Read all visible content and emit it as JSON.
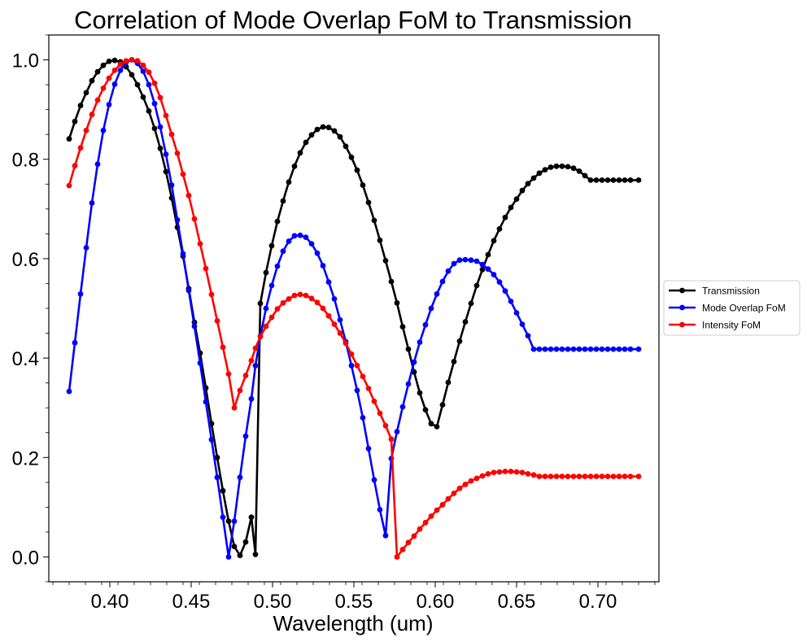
{
  "chart_data": {
    "type": "line",
    "title": "Correlation of Mode Overlap FoM to Transmission",
    "xlabel": "Wavelength (um)",
    "ylabel": "",
    "xlim": [
      0.3625,
      0.7375
    ],
    "ylim": [
      -0.05,
      1.05
    ],
    "xticks": [
      0.4,
      0.45,
      0.5,
      0.55,
      0.6,
      0.65,
      0.7
    ],
    "xtick_labels": [
      "0.40",
      "0.45",
      "0.50",
      "0.55",
      "0.60",
      "0.65",
      "0.70"
    ],
    "yticks": [
      0.0,
      0.2,
      0.4,
      0.6,
      0.8,
      1.0
    ],
    "ytick_labels": [
      "0.0",
      "0.2",
      "0.4",
      "0.6",
      "0.8",
      "1.0"
    ],
    "grid": false,
    "legend_position": "center-right-outside",
    "markers": true,
    "x": [
      0.375,
      0.3785,
      0.382,
      0.3855,
      0.389,
      0.3925,
      0.396,
      0.3995,
      0.403,
      0.4065,
      0.41,
      0.4135,
      0.417,
      0.4205,
      0.424,
      0.4275,
      0.431,
      0.4345,
      0.438,
      0.4415,
      0.445,
      0.4485,
      0.452,
      0.4555,
      0.459,
      0.4625,
      0.466,
      0.4695,
      0.473,
      0.4765,
      0.48,
      0.4835,
      0.487,
      0.4895,
      0.4925,
      0.496,
      0.4995,
      0.503,
      0.5065,
      0.51,
      0.5135,
      0.517,
      0.5205,
      0.524,
      0.5275,
      0.531,
      0.5345,
      0.538,
      0.5415,
      0.545,
      0.5485,
      0.552,
      0.5555,
      0.559,
      0.5625,
      0.566,
      0.5695,
      0.573,
      0.5765,
      0.58,
      0.5835,
      0.587,
      0.5905,
      0.594,
      0.5975,
      0.601,
      0.6045,
      0.608,
      0.6115,
      0.615,
      0.6185,
      0.622,
      0.6255,
      0.629,
      0.6325,
      0.636,
      0.6395,
      0.643,
      0.6465,
      0.65,
      0.6535,
      0.657,
      0.6605,
      0.664,
      0.6675,
      0.671,
      0.6745,
      0.678,
      0.6815,
      0.685,
      0.6885,
      0.692,
      0.6955,
      0.699,
      0.7025,
      0.706,
      0.7095,
      0.713,
      0.7165,
      0.72,
      0.725
    ],
    "series": [
      {
        "name": "Transmission",
        "color": "#000000",
        "values": [
          0.841,
          0.876,
          0.908,
          0.934,
          0.958,
          0.976,
          0.989,
          0.997,
          0.999,
          0.996,
          0.986,
          0.97,
          0.95,
          0.925,
          0.897,
          0.862,
          0.822,
          0.775,
          0.722,
          0.663,
          0.605,
          0.54,
          0.472,
          0.41,
          0.34,
          0.268,
          0.2,
          0.133,
          0.072,
          0.021,
          0.003,
          0.03,
          0.08,
          0.005,
          0.51,
          0.572,
          0.626,
          0.675,
          0.716,
          0.754,
          0.786,
          0.813,
          0.834,
          0.849,
          0.86,
          0.865,
          0.864,
          0.857,
          0.845,
          0.826,
          0.804,
          0.778,
          0.748,
          0.713,
          0.677,
          0.637,
          0.596,
          0.554,
          0.511,
          0.463,
          0.418,
          0.372,
          0.33,
          0.296,
          0.268,
          0.262,
          0.306,
          0.351,
          0.393,
          0.434,
          0.473,
          0.51,
          0.546,
          0.578,
          0.608,
          0.636,
          0.66,
          0.683,
          0.703,
          0.72,
          0.737,
          0.751,
          0.762,
          0.772,
          0.779,
          0.784,
          0.786,
          0.786,
          0.785,
          0.782,
          0.776,
          0.767,
          0.758,
          0.758,
          0.758,
          0.758,
          0.758,
          0.758,
          0.758,
          0.758,
          0.758
        ]
      },
      {
        "name": "Mode Overlap FoM",
        "color": "#0000ff",
        "values": [
          0.333,
          0.431,
          0.529,
          0.622,
          0.712,
          0.79,
          0.858,
          0.91,
          0.951,
          0.979,
          0.995,
          1.0,
          0.993,
          0.977,
          0.95,
          0.912,
          0.865,
          0.81,
          0.748,
          0.678,
          0.61,
          0.536,
          0.464,
          0.39,
          0.312,
          0.236,
          0.16,
          0.08,
          0.0,
          0.072,
          0.16,
          0.243,
          0.318,
          0.385,
          0.444,
          0.5,
          0.546,
          0.585,
          0.615,
          0.635,
          0.646,
          0.647,
          0.643,
          0.63,
          0.611,
          0.586,
          0.553,
          0.519,
          0.477,
          0.433,
          0.385,
          0.335,
          0.28,
          0.218,
          0.155,
          0.095,
          0.043,
          0.198,
          0.252,
          0.302,
          0.348,
          0.392,
          0.432,
          0.467,
          0.5,
          0.529,
          0.554,
          0.575,
          0.59,
          0.597,
          0.598,
          0.597,
          0.595,
          0.588,
          0.579,
          0.568,
          0.553,
          0.535,
          0.514,
          0.491,
          0.468,
          0.445,
          0.418,
          0.418,
          0.418,
          0.418,
          0.418,
          0.418,
          0.418,
          0.418,
          0.418,
          0.418,
          0.418,
          0.418,
          0.418,
          0.418,
          0.418,
          0.418,
          0.418,
          0.418,
          0.418
        ]
      },
      {
        "name": "Intensity FoM",
        "color": "#ff0000",
        "values": [
          0.747,
          0.787,
          0.823,
          0.858,
          0.89,
          0.919,
          0.943,
          0.963,
          0.979,
          0.991,
          0.998,
          1.0,
          0.998,
          0.989,
          0.975,
          0.953,
          0.924,
          0.888,
          0.85,
          0.812,
          0.77,
          0.727,
          0.68,
          0.63,
          0.58,
          0.528,
          0.475,
          0.422,
          0.368,
          0.3,
          0.335,
          0.365,
          0.395,
          0.42,
          0.443,
          0.464,
          0.482,
          0.499,
          0.511,
          0.519,
          0.526,
          0.528,
          0.526,
          0.52,
          0.512,
          0.5,
          0.485,
          0.468,
          0.45,
          0.43,
          0.408,
          0.385,
          0.363,
          0.339,
          0.313,
          0.289,
          0.264,
          0.237,
          0.0,
          0.015,
          0.029,
          0.042,
          0.056,
          0.069,
          0.082,
          0.094,
          0.105,
          0.117,
          0.128,
          0.138,
          0.146,
          0.153,
          0.158,
          0.163,
          0.167,
          0.17,
          0.171,
          0.172,
          0.172,
          0.171,
          0.17,
          0.167,
          0.165,
          0.162,
          0.162,
          0.162,
          0.162,
          0.162,
          0.162,
          0.162,
          0.162,
          0.162,
          0.162,
          0.162,
          0.162,
          0.162,
          0.162,
          0.162,
          0.162,
          0.162,
          0.162
        ]
      }
    ]
  }
}
